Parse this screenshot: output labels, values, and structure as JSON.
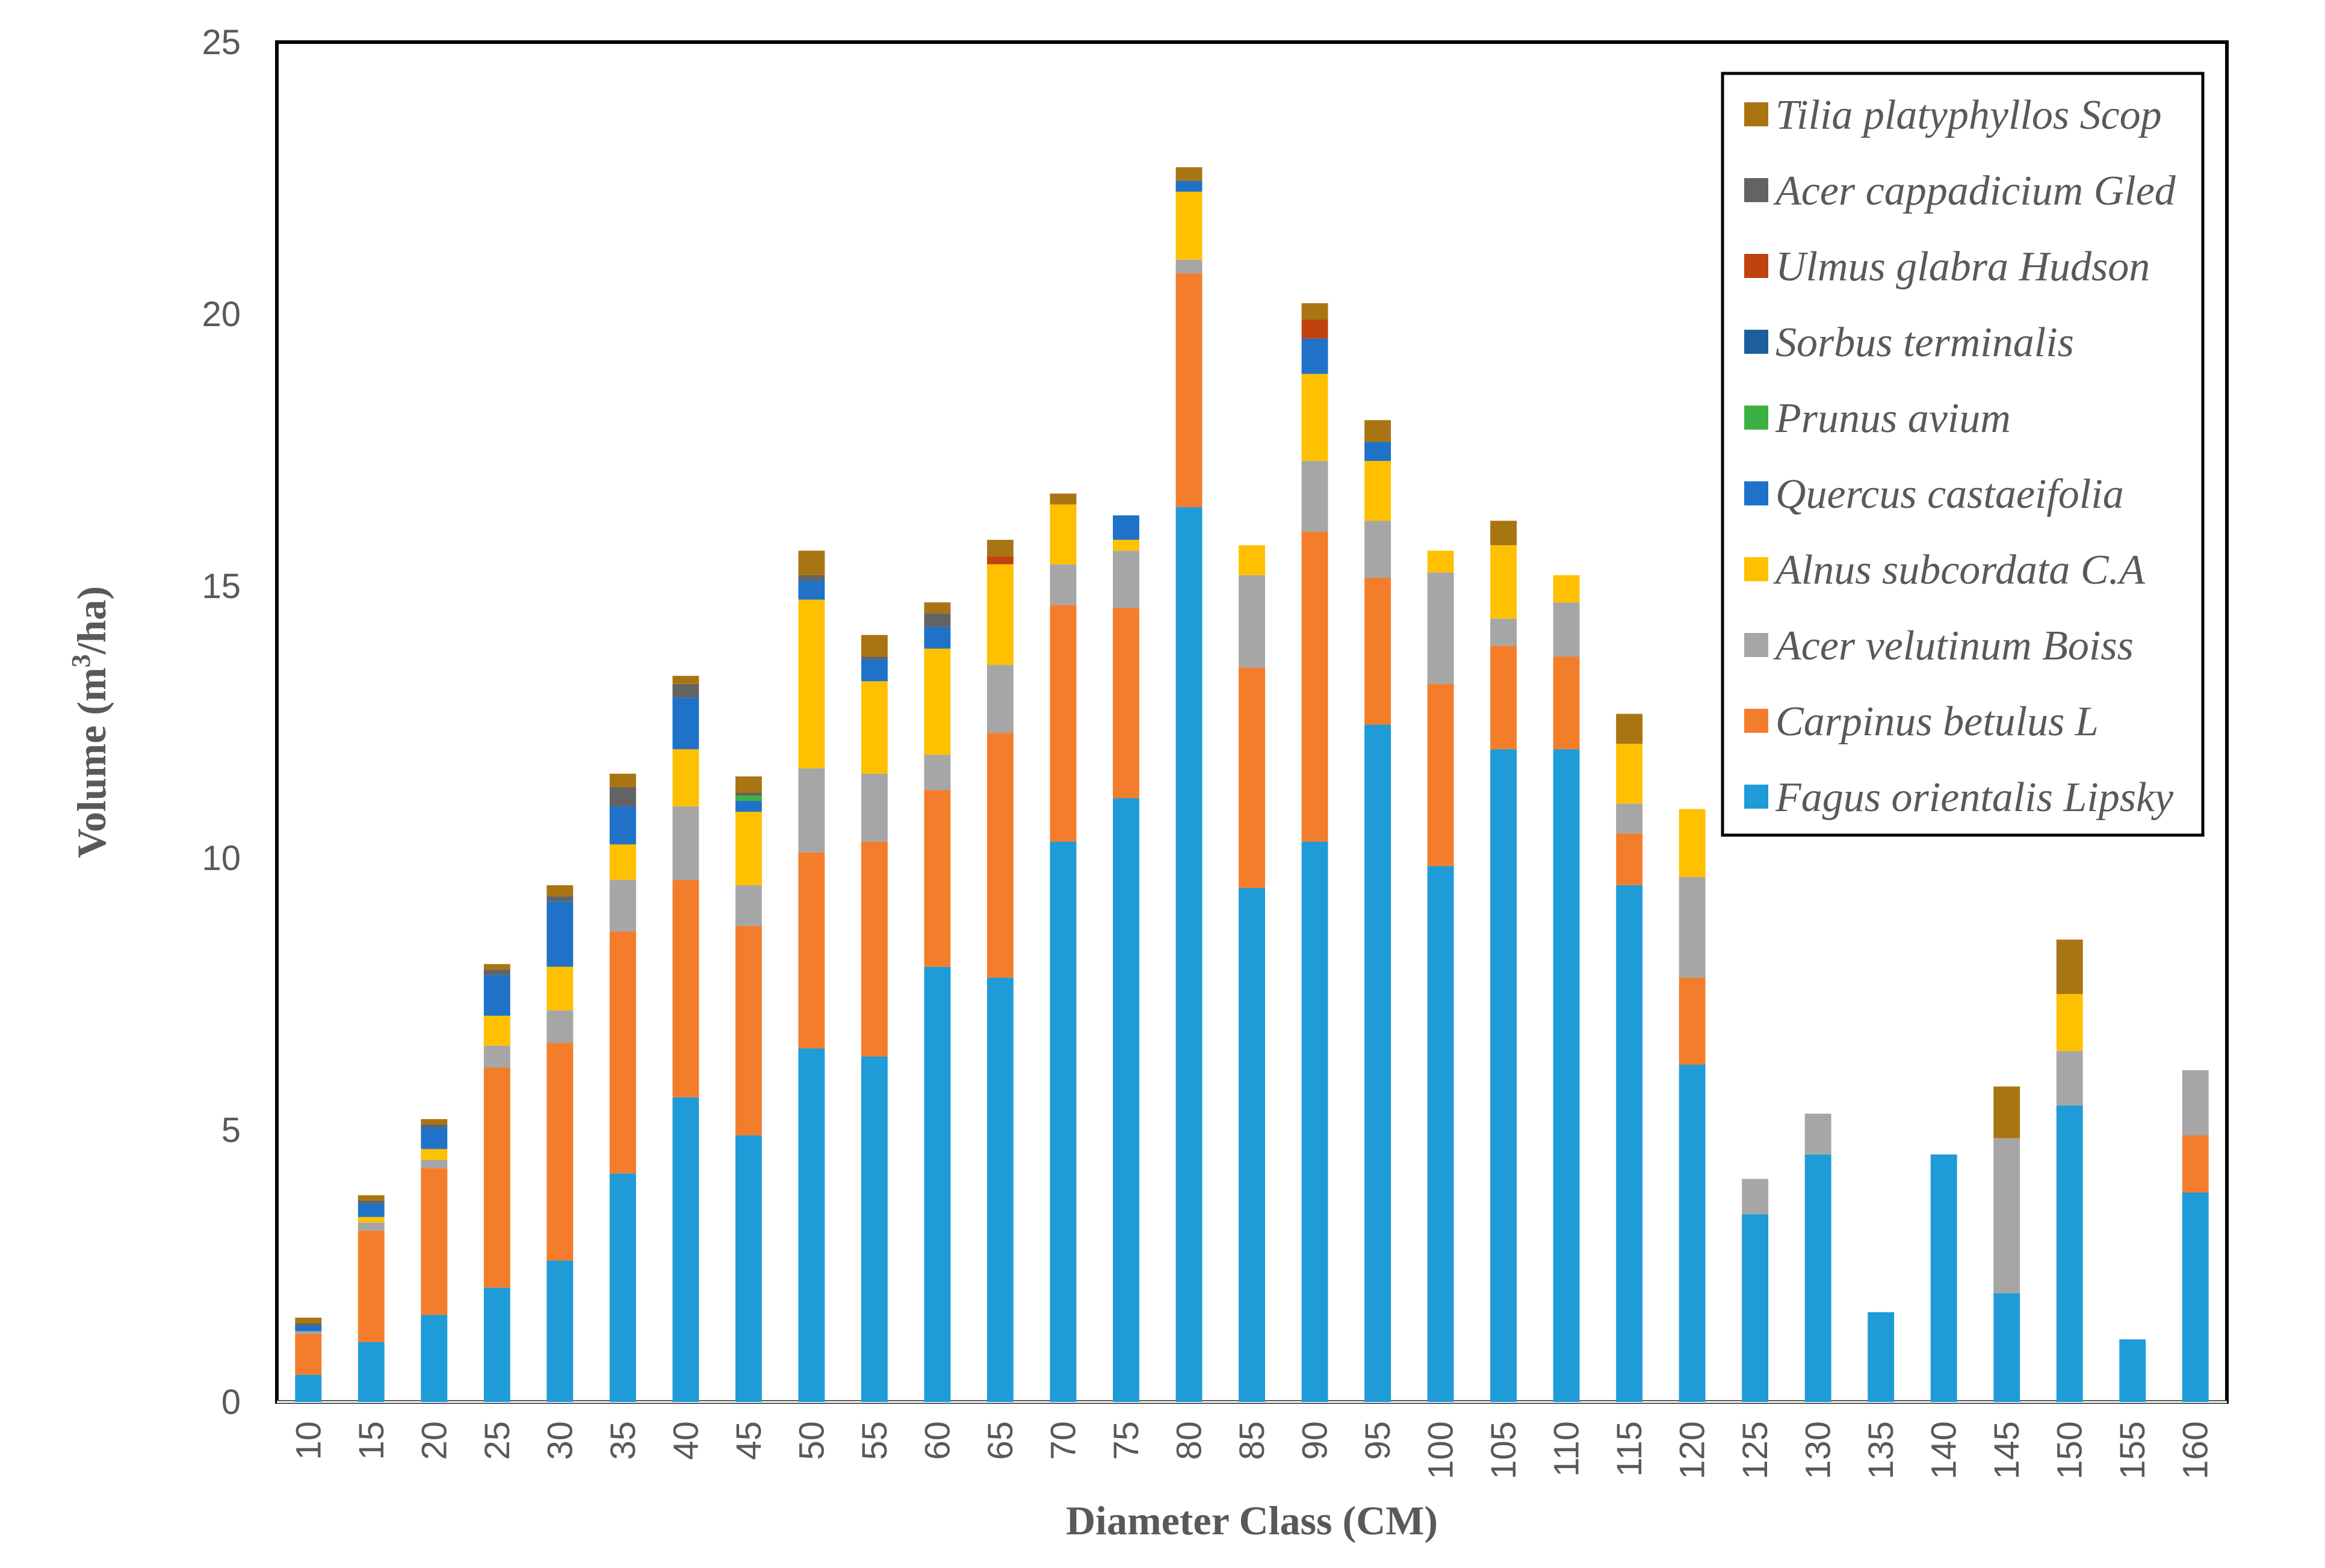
{
  "chart_data": {
    "type": "bar",
    "stacked": true,
    "xlabel": "Diameter Class (CM)",
    "ylabel_main": "Volume (m",
    "ylabel_sup": "3",
    "ylabel_tail": "/ha)",
    "ylim": [
      0,
      25
    ],
    "yticks": [
      0,
      5,
      10,
      15,
      20,
      25
    ],
    "legend_position": "top-right",
    "categories": [
      "10",
      "15",
      "20",
      "25",
      "30",
      "35",
      "40",
      "45",
      "50",
      "55",
      "60",
      "65",
      "70",
      "75",
      "80",
      "85",
      "90",
      "95",
      "100",
      "105",
      "110",
      "115",
      "120",
      "125",
      "130",
      "135",
      "140",
      "145",
      "150",
      "155",
      "160"
    ],
    "series": [
      {
        "name": "Fagus orientalis Lipsky",
        "color": "#1f9bd7",
        "values": [
          0.5,
          1.1,
          1.6,
          2.1,
          2.6,
          4.2,
          5.6,
          4.9,
          6.5,
          6.35,
          8.0,
          7.8,
          10.3,
          11.1,
          16.45,
          9.45,
          10.3,
          12.45,
          9.85,
          12.0,
          12.0,
          9.5,
          6.2,
          3.45,
          4.55,
          1.65,
          4.55,
          2.0,
          5.45,
          1.15,
          3.85
        ]
      },
      {
        "name": "Carpinus betulus L",
        "color": "#f47d2c",
        "values": [
          0.75,
          2.05,
          2.7,
          4.05,
          4.0,
          4.45,
          4.0,
          3.85,
          3.6,
          3.95,
          3.25,
          4.5,
          4.35,
          3.5,
          4.3,
          4.05,
          5.7,
          2.7,
          3.35,
          1.9,
          1.7,
          0.95,
          1.6,
          0,
          0,
          0,
          0,
          0,
          0,
          0,
          1.05
        ]
      },
      {
        "name": "Acer velutinum Boiss",
        "color": "#a6a6a6",
        "values": [
          0.05,
          0.15,
          0.15,
          0.4,
          0.6,
          0.95,
          1.35,
          0.75,
          1.55,
          1.25,
          0.65,
          1.25,
          0.75,
          1.05,
          0.25,
          1.7,
          1.3,
          1.05,
          2.05,
          0.5,
          1.0,
          0.55,
          1.85,
          0.65,
          0.75,
          0,
          0,
          2.85,
          1.0,
          0,
          1.2
        ]
      },
      {
        "name": "Alnus subcordata C.A",
        "color": "#ffc000",
        "values": [
          0,
          0.1,
          0.2,
          0.55,
          0.8,
          0.65,
          1.05,
          1.35,
          3.1,
          1.7,
          1.95,
          1.85,
          1.1,
          0.2,
          1.25,
          0.55,
          1.6,
          1.1,
          0.4,
          1.35,
          0.5,
          1.1,
          1.25,
          0,
          0,
          0,
          0,
          0,
          1.05,
          0,
          0
        ]
      },
      {
        "name": "Quercus castaeifolia",
        "color": "#1f72c8",
        "values": [
          0.1,
          0.25,
          0.4,
          0.75,
          1.2,
          0.7,
          0.95,
          0.2,
          0.35,
          0.4,
          0.4,
          0,
          0,
          0.45,
          0.2,
          0,
          0.65,
          0.35,
          0,
          0,
          0,
          0,
          0,
          0,
          0,
          0,
          0,
          0,
          0,
          0,
          0
        ]
      },
      {
        "name": "Prunus avium",
        "color": "#3bb143",
        "values": [
          0,
          0,
          0,
          0,
          0,
          0,
          0,
          0.1,
          0,
          0,
          0,
          0,
          0,
          0,
          0,
          0,
          0,
          0,
          0,
          0,
          0,
          0,
          0,
          0,
          0,
          0,
          0,
          0,
          0,
          0,
          0
        ]
      },
      {
        "name": "Sorbus terminalis",
        "color": "#1c5f9c",
        "values": [
          0,
          0,
          0,
          0,
          0,
          0,
          0,
          0,
          0,
          0,
          0,
          0,
          0,
          0,
          0,
          0,
          0,
          0,
          0,
          0,
          0,
          0,
          0,
          0,
          0,
          0,
          0,
          0,
          0,
          0,
          0
        ]
      },
      {
        "name": "Ulmus glabra Hudson",
        "color": "#c0420f",
        "values": [
          0,
          0,
          0,
          0,
          0,
          0,
          0,
          0,
          0,
          0,
          0,
          0.15,
          0,
          0,
          0,
          0,
          0.35,
          0,
          0,
          0,
          0,
          0,
          0,
          0,
          0,
          0,
          0,
          0,
          0,
          0,
          0
        ]
      },
      {
        "name": "Acer cappadicium Gled",
        "color": "#636363",
        "values": [
          0.05,
          0.05,
          0.05,
          0.1,
          0.1,
          0.35,
          0.25,
          0.05,
          0.1,
          0.05,
          0.25,
          0,
          0,
          0,
          0,
          0,
          0,
          0,
          0,
          0,
          0,
          0,
          0,
          0,
          0,
          0,
          0,
          0,
          0,
          0,
          0
        ]
      },
      {
        "name": "Tilia platyphyllos Scop",
        "color": "#a97513",
        "values": [
          0.1,
          0.1,
          0.1,
          0.1,
          0.2,
          0.25,
          0.15,
          0.3,
          0.45,
          0.4,
          0.2,
          0.3,
          0.2,
          0,
          0.25,
          0,
          0.3,
          0.4,
          0,
          0.45,
          0,
          0.55,
          0,
          0,
          0,
          0,
          0,
          0.95,
          1.0,
          0,
          0
        ]
      }
    ]
  }
}
